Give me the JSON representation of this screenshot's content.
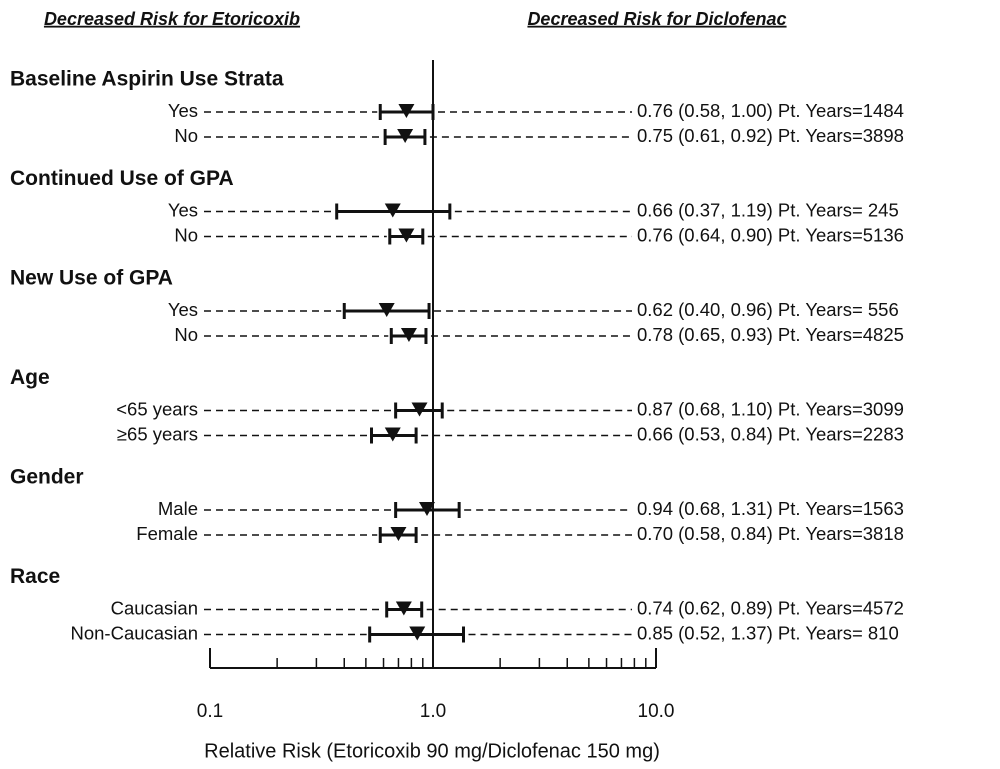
{
  "chart_data": {
    "type": "forest",
    "header_left": "Decreased Risk for Etoricoxib",
    "header_right": "Decreased Risk for Diclofenac",
    "xlabel": "Relative Risk (Etoricoxib 90 mg/Diclofenac 150 mg)",
    "log_scale": true,
    "xlim": [
      0.1,
      10
    ],
    "xticks": [
      {
        "value": 0.1,
        "label": "0.1"
      },
      {
        "value": 1,
        "label": "1.0"
      },
      {
        "value": 10,
        "label": "10.0"
      }
    ],
    "minor_xticks": [
      0.2,
      0.3,
      0.4,
      0.5,
      0.6,
      0.7,
      0.8,
      0.9,
      2,
      3,
      4,
      5,
      6,
      7,
      8,
      9
    ],
    "reference_line": 1,
    "color": "#111111",
    "groups": [
      {
        "name": "Baseline Aspirin Use Strata",
        "categories": [
          "Yes",
          "No"
        ],
        "values": [
          0.76,
          0.75
        ],
        "lower": [
          0.58,
          0.61
        ],
        "upper": [
          1.0,
          0.92
        ],
        "value_labels": [
          "0.76 (0.58, 1.00) Pt. Years=1484",
          "0.75 (0.61, 0.92) Pt. Years=3898"
        ]
      },
      {
        "name": "Continued Use of GPA",
        "categories": [
          "Yes",
          "No"
        ],
        "values": [
          0.66,
          0.76
        ],
        "lower": [
          0.37,
          0.64
        ],
        "upper": [
          1.19,
          0.9
        ],
        "value_labels": [
          "0.66 (0.37, 1.19) Pt. Years= 245",
          "0.76 (0.64, 0.90) Pt. Years=5136"
        ]
      },
      {
        "name": "New Use of GPA",
        "categories": [
          "Yes",
          "No"
        ],
        "values": [
          0.62,
          0.78
        ],
        "lower": [
          0.4,
          0.65
        ],
        "upper": [
          0.96,
          0.93
        ],
        "value_labels": [
          "0.62 (0.40, 0.96) Pt. Years= 556",
          "0.78 (0.65, 0.93) Pt. Years=4825"
        ]
      },
      {
        "name": "Age",
        "categories": [
          "<65 years",
          "≥65 years"
        ],
        "values": [
          0.87,
          0.66
        ],
        "lower": [
          0.68,
          0.53
        ],
        "upper": [
          1.1,
          0.84
        ],
        "value_labels": [
          "0.87 (0.68, 1.10) Pt. Years=3099",
          "0.66 (0.53, 0.84) Pt. Years=2283"
        ]
      },
      {
        "name": "Gender",
        "categories": [
          "Male",
          "Female"
        ],
        "values": [
          0.94,
          0.7
        ],
        "lower": [
          0.68,
          0.58
        ],
        "upper": [
          1.31,
          0.84
        ],
        "value_labels": [
          "0.94 (0.68, 1.31) Pt. Years=1563",
          "0.70 (0.58, 0.84) Pt. Years=3818"
        ]
      },
      {
        "name": "Race",
        "categories": [
          "Caucasian",
          "Non-Caucasian"
        ],
        "values": [
          0.74,
          0.85
        ],
        "lower": [
          0.62,
          0.52
        ],
        "upper": [
          0.89,
          1.37
        ],
        "value_labels": [
          "0.74 (0.62, 0.89) Pt. Years=4572",
          "0.85 (0.52, 1.37) Pt. Years= 810"
        ]
      }
    ]
  }
}
